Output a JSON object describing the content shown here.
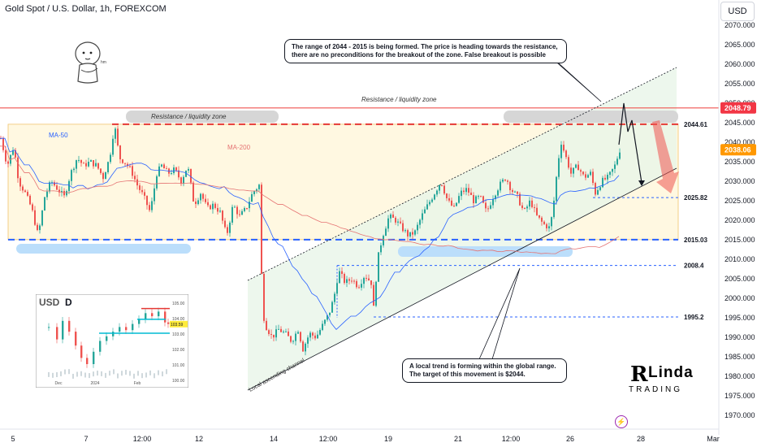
{
  "header": {
    "title": "Gold Spot / U.S. Dollar, 1h, FOREXCOM",
    "currency_button": "USD"
  },
  "colors": {
    "up": "#26a69a",
    "down": "#ef5350",
    "ma50": "#2962ff",
    "ma200": "#e57373",
    "resistance": "#ef5350",
    "support": "#2962ff",
    "zone_fill": "#fff8e1",
    "channel_fill": "#e8f5e9"
  },
  "chart_data": {
    "type": "candlestick",
    "instrument": "Gold Spot / U.S. Dollar",
    "timeframe": "1h",
    "y_axis": {
      "ticks": [
        2070,
        2065,
        2060,
        2055,
        2050,
        2045,
        2040,
        2035,
        2030,
        2025,
        2020,
        2015,
        2010,
        2005,
        2000,
        1995,
        1990,
        1985,
        1980,
        1975,
        1970
      ],
      "range": [
        1967,
        2073
      ]
    },
    "x_axis": {
      "ticks": [
        "5",
        "7",
        "12:00",
        "12",
        "14",
        "12:00",
        "19",
        "21",
        "12:00",
        "26",
        "28",
        "Mar"
      ]
    },
    "price_path": [
      [
        0,
        2041
      ],
      [
        8,
        2034
      ],
      [
        16,
        2039
      ],
      [
        22,
        2030
      ],
      [
        30,
        2027
      ],
      [
        38,
        2023
      ],
      [
        46,
        2016
      ],
      [
        54,
        2026
      ],
      [
        62,
        2030
      ],
      [
        70,
        2028
      ],
      [
        78,
        2026
      ],
      [
        86,
        2032
      ],
      [
        94,
        2036
      ],
      [
        102,
        2034
      ],
      [
        110,
        2035
      ],
      [
        118,
        2034
      ],
      [
        126,
        2031
      ],
      [
        134,
        2036
      ],
      [
        140,
        2044.5
      ],
      [
        146,
        2036
      ],
      [
        152,
        2035
      ],
      [
        160,
        2033
      ],
      [
        168,
        2029
      ],
      [
        176,
        2026
      ],
      [
        184,
        2022
      ],
      [
        192,
        2032
      ],
      [
        198,
        2034
      ],
      [
        206,
        2032
      ],
      [
        214,
        2033
      ],
      [
        222,
        2030
      ],
      [
        230,
        2034
      ],
      [
        238,
        2024
      ],
      [
        246,
        2027
      ],
      [
        254,
        2023
      ],
      [
        262,
        2024
      ],
      [
        270,
        2022
      ],
      [
        278,
        2016
      ],
      [
        286,
        2024
      ],
      [
        294,
        2021
      ],
      [
        302,
        2023
      ],
      [
        310,
        2027
      ],
      [
        318,
        2029
      ],
      [
        320,
        2015
      ],
      [
        322,
        1997
      ],
      [
        326,
        1993
      ],
      [
        334,
        1990
      ],
      [
        342,
        1992
      ],
      [
        350,
        1991
      ],
      [
        358,
        1989
      ],
      [
        366,
        1992
      ],
      [
        372,
        1987
      ],
      [
        380,
        1991
      ],
      [
        388,
        1990
      ],
      [
        396,
        1993
      ],
      [
        404,
        1996
      ],
      [
        410,
        2000
      ],
      [
        416,
        2007
      ],
      [
        424,
        2004
      ],
      [
        432,
        2005
      ],
      [
        440,
        2003
      ],
      [
        448,
        2006
      ],
      [
        456,
        2004
      ],
      [
        458,
        1995
      ],
      [
        464,
        2010
      ],
      [
        470,
        2016
      ],
      [
        478,
        2021
      ],
      [
        486,
        2020
      ],
      [
        494,
        2018
      ],
      [
        502,
        2016
      ],
      [
        510,
        2017
      ],
      [
        518,
        2021
      ],
      [
        526,
        2024
      ],
      [
        534,
        2027
      ],
      [
        542,
        2030
      ],
      [
        550,
        2025
      ],
      [
        558,
        2023
      ],
      [
        566,
        2027
      ],
      [
        574,
        2028
      ],
      [
        582,
        2025
      ],
      [
        590,
        2026
      ],
      [
        598,
        2022
      ],
      [
        606,
        2026
      ],
      [
        614,
        2029
      ],
      [
        622,
        2031
      ],
      [
        628,
        2028
      ],
      [
        636,
        2026
      ],
      [
        644,
        2022
      ],
      [
        652,
        2025
      ],
      [
        660,
        2021
      ],
      [
        668,
        2019
      ],
      [
        676,
        2018
      ],
      [
        680,
        2023
      ],
      [
        686,
        2035
      ],
      [
        690,
        2040
      ],
      [
        696,
        2036
      ],
      [
        702,
        2032
      ],
      [
        710,
        2034
      ],
      [
        718,
        2031
      ],
      [
        726,
        2032
      ],
      [
        732,
        2027
      ],
      [
        740,
        2030
      ],
      [
        748,
        2031
      ],
      [
        756,
        2034
      ],
      [
        762,
        2038
      ]
    ],
    "levels": [
      {
        "label": "2044.61",
        "value": 2044.61,
        "style": "red-dashed"
      },
      {
        "label": "2025.82",
        "value": 2025.82,
        "style": "blue-dashed-short"
      },
      {
        "label": "2015.03",
        "value": 2015.03,
        "style": "blue-dashed"
      },
      {
        "label": "2008.4",
        "value": 2008.4,
        "style": "blue-dashed-short"
      },
      {
        "label": "1995.2",
        "value": 1995.2,
        "style": "blue-dashed-short"
      }
    ],
    "price_badges": [
      {
        "label": "2048.79",
        "value": 2048.79,
        "color": "#f23645"
      },
      {
        "label": "2038.06",
        "value": 2038.06,
        "color": "#ff9800"
      }
    ],
    "resistance_line": 2048.79,
    "range_zone": [
      2015.03,
      2044.61
    ],
    "series": [
      {
        "name": "MA-50",
        "color": "#2962ff"
      },
      {
        "name": "MA-200",
        "color": "#e57373"
      }
    ],
    "labels": {
      "resistance_zone_left": "Resistance / liquidity zone",
      "resistance_zone_right": "Resistance / liquidity zone",
      "channel": "Local ascending channel"
    }
  },
  "notes": {
    "top": "The range of 2044 - 2015 is being formed. The price is heading towards the resistance, there are no preconditions for the breakout of the zone. False breakout is possible",
    "bottom": "A local trend is forming within the global range. The target of this movement is $2044."
  },
  "inset": {
    "currency": "USD",
    "timeframe": "D",
    "ticks": [
      "105.00",
      "104.00",
      "103.00",
      "102.00",
      "101.00",
      "100.00"
    ],
    "price_badge": "103.59",
    "x_ticks": [
      "Dec",
      "2024",
      "Feb"
    ]
  },
  "logo": {
    "initial": "R",
    "word": "Linda",
    "sub": "TRADING"
  },
  "mascot_text": "hm"
}
